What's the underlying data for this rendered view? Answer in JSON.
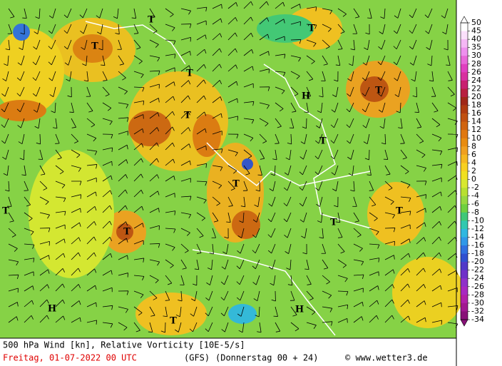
{
  "map": {
    "markers": [
      "T",
      "T",
      "T",
      "T",
      "T",
      "T",
      "T",
      "T",
      "T",
      "T",
      "T",
      "T",
      "T",
      "H",
      "H",
      "H"
    ]
  },
  "legend": {
    "ticks": [
      50,
      45,
      40,
      35,
      30,
      28,
      26,
      24,
      22,
      20,
      18,
      16,
      14,
      12,
      10,
      8,
      6,
      4,
      2,
      0,
      -2,
      -4,
      -6,
      -8,
      -10,
      -12,
      -14,
      -16,
      -18,
      -20,
      -22,
      -24,
      -26,
      -28,
      -30,
      -32,
      -34
    ],
    "colors": [
      "#ffffff",
      "#fbe0fb",
      "#f5b8f5",
      "#ee90ee",
      "#e868d8",
      "#e040c0",
      "#d830a0",
      "#c82070",
      "#b82040",
      "#a02818",
      "#b03c10",
      "#c05010",
      "#d06410",
      "#e07810",
      "#e88c10",
      "#f0a020",
      "#f5b820",
      "#f8d020",
      "#f0e020",
      "#d8e830",
      "#b8e030",
      "#98d840",
      "#70d040",
      "#40c878",
      "#30c8b0",
      "#30b8e0",
      "#3098e8",
      "#3070e0",
      "#3050d0",
      "#5038c8",
      "#7030c8",
      "#9030c8",
      "#a828c0",
      "#b020a8",
      "#a01890",
      "#881078"
    ]
  },
  "footer": {
    "title": "500 hPa Wind [kn], Relative Vorticity [10E-5/s]",
    "date": "Freitag, 01-07-2022   00 UTC",
    "model": "(GFS)",
    "run": "(Donnerstag 00 + 24)",
    "source": "© www.wetter3.de"
  }
}
